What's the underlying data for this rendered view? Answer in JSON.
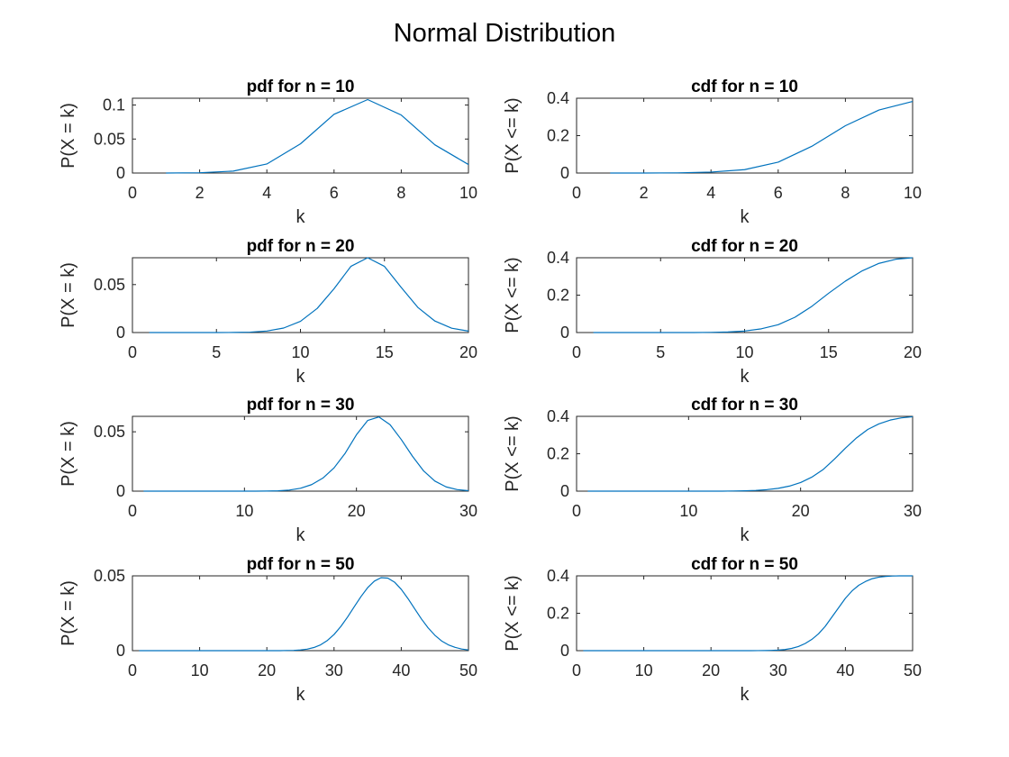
{
  "figure": {
    "title": "Normal Distribution",
    "line_color": "#0072BD"
  },
  "chart_data": [
    {
      "type": "line",
      "title": "pdf for n = 10",
      "xlabel": "k",
      "ylabel": "P(X = k)",
      "xlim": [
        0,
        10
      ],
      "ylim": [
        0,
        0.11
      ],
      "xticks": [
        0,
        2,
        4,
        6,
        8,
        10
      ],
      "yticks": [
        0,
        0.05,
        0.1
      ],
      "series": [
        {
          "x": [
            1,
            2,
            3,
            4,
            5,
            6,
            7,
            8,
            9,
            10
          ],
          "y": [
            0.0,
            0.0004,
            0.0028,
            0.0133,
            0.0429,
            0.0864,
            0.108,
            0.0853,
            0.0415,
            0.0125
          ]
        }
      ]
    },
    {
      "type": "line",
      "title": "cdf for n = 10",
      "xlabel": "k",
      "ylabel": "P(X <= k)",
      "xlim": [
        0,
        10
      ],
      "ylim": [
        0,
        0.4
      ],
      "xticks": [
        0,
        2,
        4,
        6,
        8,
        10
      ],
      "yticks": [
        0,
        0.2,
        0.4
      ],
      "series": [
        {
          "x": [
            1,
            2,
            3,
            4,
            5,
            6,
            7,
            8,
            9,
            10
          ],
          "y": [
            0.0,
            0.0,
            0.001,
            0.005,
            0.018,
            0.058,
            0.143,
            0.253,
            0.337,
            0.383
          ]
        }
      ]
    },
    {
      "type": "line",
      "title": "pdf for n = 20",
      "xlabel": "k",
      "ylabel": "P(X = k)",
      "xlim": [
        0,
        20
      ],
      "ylim": [
        0,
        0.078
      ],
      "xticks": [
        0,
        5,
        10,
        15,
        20
      ],
      "yticks": [
        0,
        0.05
      ],
      "series": [
        {
          "x": [
            1,
            2,
            3,
            4,
            5,
            6,
            7,
            8,
            9,
            10,
            11,
            12,
            13,
            14,
            15,
            16,
            17,
            18,
            19,
            20
          ],
          "y": [
            0.0,
            0.0,
            0.0,
            0.0,
            0.0,
            0.0001,
            0.0004,
            0.0016,
            0.0047,
            0.0117,
            0.0252,
            0.0457,
            0.069,
            0.078,
            0.069,
            0.047,
            0.026,
            0.012,
            0.0045,
            0.0015
          ]
        }
      ]
    },
    {
      "type": "line",
      "title": "cdf for n = 20",
      "xlabel": "k",
      "ylabel": "P(X <= k)",
      "xlim": [
        0,
        20
      ],
      "ylim": [
        0,
        0.4
      ],
      "xticks": [
        0,
        5,
        10,
        15,
        20
      ],
      "yticks": [
        0,
        0.2,
        0.4
      ],
      "series": [
        {
          "x": [
            1,
            2,
            3,
            4,
            5,
            6,
            7,
            8,
            9,
            10,
            11,
            12,
            13,
            14,
            15,
            16,
            17,
            18,
            19,
            20
          ],
          "y": [
            0.0,
            0.0,
            0.0,
            0.0,
            0.0,
            0.0,
            0.0,
            0.001,
            0.003,
            0.008,
            0.02,
            0.042,
            0.082,
            0.14,
            0.21,
            0.275,
            0.33,
            0.37,
            0.392,
            0.4
          ]
        }
      ]
    },
    {
      "type": "line",
      "title": "pdf for n = 30",
      "xlabel": "k",
      "ylabel": "P(X = k)",
      "xlim": [
        0,
        30
      ],
      "ylim": [
        0,
        0.063
      ],
      "xticks": [
        0,
        10,
        20,
        30
      ],
      "yticks": [
        0,
        0.05
      ],
      "series": [
        {
          "x": [
            1,
            2,
            3,
            4,
            5,
            6,
            7,
            8,
            9,
            10,
            11,
            12,
            13,
            14,
            15,
            16,
            17,
            18,
            19,
            20,
            21,
            22,
            23,
            24,
            25,
            26,
            27,
            28,
            29,
            30
          ],
          "y": [
            0.0,
            0.0,
            0.0,
            0.0,
            0.0,
            0.0,
            0.0,
            0.0,
            0.0,
            0.0,
            0.0,
            0.0001,
            0.0003,
            0.0009,
            0.0024,
            0.0055,
            0.011,
            0.0196,
            0.032,
            0.0475,
            0.0595,
            0.0625,
            0.056,
            0.0435,
            0.0294,
            0.017,
            0.0085,
            0.0036,
            0.0013,
            0.0004
          ]
        }
      ]
    },
    {
      "type": "line",
      "title": "cdf for n = 30",
      "xlabel": "k",
      "ylabel": "P(X <= k)",
      "xlim": [
        0,
        30
      ],
      "ylim": [
        0,
        0.4
      ],
      "xticks": [
        0,
        10,
        20,
        30
      ],
      "yticks": [
        0,
        0.2,
        0.4
      ],
      "series": [
        {
          "x": [
            1,
            2,
            3,
            4,
            5,
            6,
            7,
            8,
            9,
            10,
            11,
            12,
            13,
            14,
            15,
            16,
            17,
            18,
            19,
            20,
            21,
            22,
            23,
            24,
            25,
            26,
            27,
            28,
            29,
            30
          ],
          "y": [
            0.0,
            0.0,
            0.0,
            0.0,
            0.0,
            0.0,
            0.0,
            0.0,
            0.0,
            0.0,
            0.0,
            0.0,
            0.0,
            0.001,
            0.002,
            0.004,
            0.008,
            0.015,
            0.027,
            0.046,
            0.075,
            0.115,
            0.17,
            0.23,
            0.285,
            0.33,
            0.36,
            0.38,
            0.392,
            0.398
          ]
        }
      ]
    },
    {
      "type": "line",
      "title": "pdf for n = 50",
      "xlabel": "k",
      "ylabel": "P(X = k)",
      "xlim": [
        0,
        50
      ],
      "ylim": [
        0,
        0.05
      ],
      "xticks": [
        0,
        10,
        20,
        30,
        40,
        50
      ],
      "yticks": [
        0,
        0.05
      ],
      "series": [
        {
          "x": [
            1,
            2,
            3,
            4,
            5,
            6,
            7,
            8,
            9,
            10,
            11,
            12,
            13,
            14,
            15,
            16,
            17,
            18,
            19,
            20,
            21,
            22,
            23,
            24,
            25,
            26,
            27,
            28,
            29,
            30,
            31,
            32,
            33,
            34,
            35,
            36,
            37,
            38,
            39,
            40,
            41,
            42,
            43,
            44,
            45,
            46,
            47,
            48,
            49,
            50
          ],
          "y": [
            0.0,
            0.0,
            0.0,
            0.0,
            0.0,
            0.0,
            0.0,
            0.0,
            0.0,
            0.0,
            0.0,
            0.0,
            0.0,
            0.0,
            0.0,
            0.0,
            0.0,
            0.0,
            0.0,
            0.0,
            0.0,
            0.0,
            0.0001,
            0.0002,
            0.0005,
            0.001,
            0.0021,
            0.0039,
            0.0068,
            0.0108,
            0.0161,
            0.0224,
            0.0293,
            0.0361,
            0.0421,
            0.0465,
            0.0488,
            0.0485,
            0.0458,
            0.041,
            0.0348,
            0.028,
            0.0212,
            0.0152,
            0.0103,
            0.0065,
            0.0039,
            0.0022,
            0.0011,
            0.0005
          ]
        }
      ]
    },
    {
      "type": "line",
      "title": "cdf for n = 50",
      "xlabel": "k",
      "ylabel": "P(X <= k)",
      "xlim": [
        0,
        50
      ],
      "ylim": [
        0,
        0.4
      ],
      "xticks": [
        0,
        10,
        20,
        30,
        40,
        50
      ],
      "yticks": [
        0,
        0.2,
        0.4
      ],
      "series": [
        {
          "x": [
            1,
            2,
            3,
            4,
            5,
            6,
            7,
            8,
            9,
            10,
            11,
            12,
            13,
            14,
            15,
            16,
            17,
            18,
            19,
            20,
            21,
            22,
            23,
            24,
            25,
            26,
            27,
            28,
            29,
            30,
            31,
            32,
            33,
            34,
            35,
            36,
            37,
            38,
            39,
            40,
            41,
            42,
            43,
            44,
            45,
            46,
            47,
            48,
            49,
            50
          ],
          "y": [
            0.0,
            0.0,
            0.0,
            0.0,
            0.0,
            0.0,
            0.0,
            0.0,
            0.0,
            0.0,
            0.0,
            0.0,
            0.0,
            0.0,
            0.0,
            0.0,
            0.0,
            0.0,
            0.0,
            0.0,
            0.0,
            0.0,
            0.0,
            0.0,
            0.0,
            0.0,
            0.0002,
            0.0006,
            0.0014,
            0.003,
            0.006,
            0.012,
            0.022,
            0.038,
            0.06,
            0.09,
            0.13,
            0.18,
            0.23,
            0.28,
            0.32,
            0.35,
            0.37,
            0.385,
            0.393,
            0.397,
            0.399,
            0.4,
            0.4,
            0.4
          ]
        }
      ]
    }
  ]
}
